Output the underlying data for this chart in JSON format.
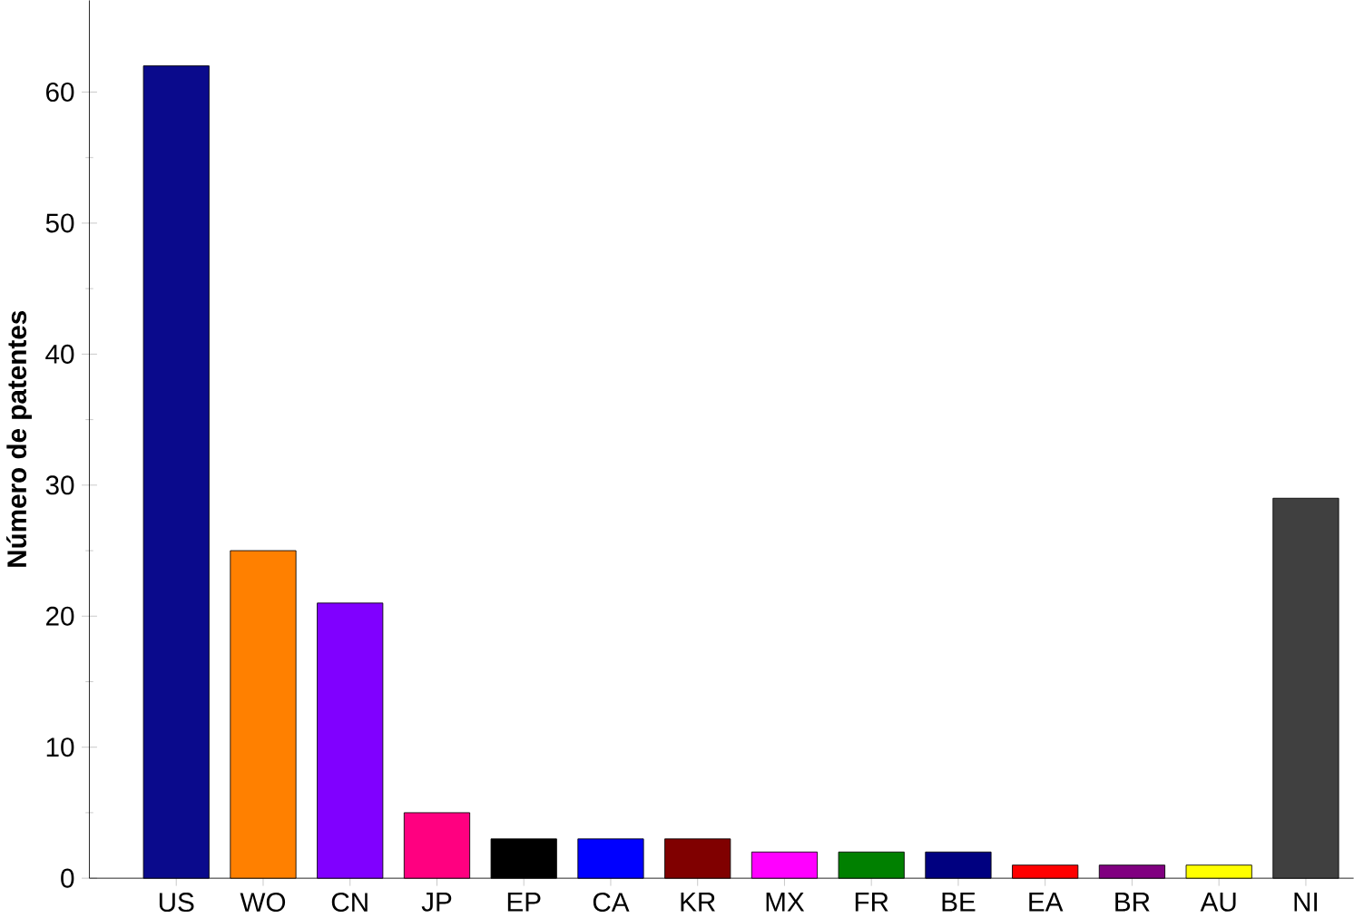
{
  "chart_data": {
    "type": "bar",
    "ylabel": "Número de patentes",
    "categories": [
      "US",
      "WO",
      "CN",
      "JP",
      "EP",
      "CA",
      "KR",
      "MX",
      "FR",
      "BE",
      "EA",
      "BR",
      "AU",
      "NI"
    ],
    "values": [
      62,
      25,
      21,
      5,
      3,
      3,
      3,
      2,
      2,
      2,
      1,
      1,
      1,
      29
    ],
    "colors": [
      "#0a0a8c",
      "#ff8000",
      "#8000ff",
      "#ff0080",
      "#000000",
      "#0000ff",
      "#800000",
      "#ff00ff",
      "#008000",
      "#000080",
      "#ff0000",
      "#800080",
      "#ffff00",
      "#404040"
    ],
    "ylim": [
      0,
      67
    ],
    "yticks": [
      0,
      10,
      20,
      30,
      40,
      50,
      60
    ]
  }
}
